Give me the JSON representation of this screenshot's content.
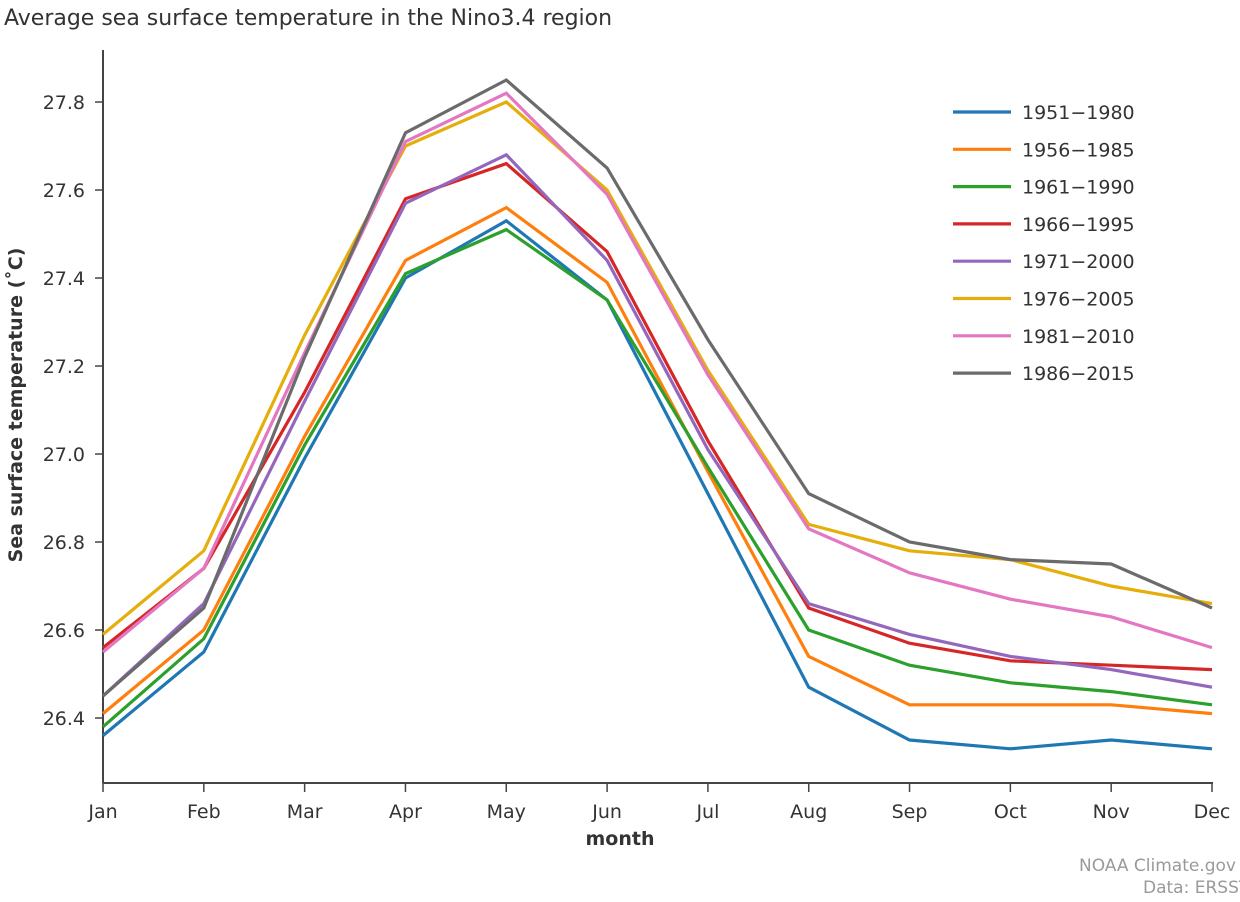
{
  "chart_data": {
    "type": "line",
    "title": "Average sea surface temperature in the Nino3.4 region",
    "xlabel": "month",
    "ylabel": "Sea surface temperature (˚C)",
    "categories": [
      "Jan",
      "Feb",
      "Mar",
      "Apr",
      "May",
      "Jun",
      "Jul",
      "Aug",
      "Sep",
      "Oct",
      "Nov",
      "Dec"
    ],
    "y_ticks": [
      "26.4",
      "26.6",
      "26.8",
      "27.0",
      "27.2",
      "27.4",
      "27.6",
      "27.8"
    ],
    "ylim": [
      26.24,
      27.9
    ],
    "grid": false,
    "legend_position": "top-right",
    "series": [
      {
        "name": "1951−1980",
        "color": "#1f77b4",
        "values": [
          26.36,
          26.55,
          26.99,
          27.4,
          27.53,
          27.35,
          26.91,
          26.47,
          26.35,
          26.33,
          26.35,
          26.33
        ]
      },
      {
        "name": "1956−1985",
        "color": "#ff7f0e",
        "values": [
          26.41,
          26.6,
          27.04,
          27.44,
          27.56,
          27.39,
          26.96,
          26.54,
          26.43,
          26.43,
          26.43,
          26.41
        ]
      },
      {
        "name": "1961−1990",
        "color": "#2ca02c",
        "values": [
          26.38,
          26.58,
          27.02,
          27.41,
          27.51,
          27.35,
          26.97,
          26.6,
          26.52,
          26.48,
          26.46,
          26.43
        ]
      },
      {
        "name": "1966−1995",
        "color": "#d62728",
        "values": [
          26.56,
          26.74,
          27.14,
          27.58,
          27.66,
          27.46,
          27.03,
          26.65,
          26.57,
          26.53,
          26.52,
          26.51
        ]
      },
      {
        "name": "1971−2000",
        "color": "#9467bd",
        "values": [
          26.45,
          26.66,
          27.12,
          27.57,
          27.68,
          27.44,
          27.01,
          26.66,
          26.59,
          26.54,
          26.51,
          26.47
        ]
      },
      {
        "name": "1976−2005",
        "color": "#e5ae0b",
        "values": [
          26.59,
          26.78,
          27.27,
          27.7,
          27.8,
          27.6,
          27.19,
          26.84,
          26.78,
          26.76,
          26.7,
          26.66
        ]
      },
      {
        "name": "1981−2010",
        "color": "#e377c2",
        "values": [
          26.55,
          26.74,
          27.23,
          27.71,
          27.82,
          27.59,
          27.18,
          26.83,
          26.73,
          26.67,
          26.63,
          26.56
        ]
      },
      {
        "name": "1986−2015",
        "color": "#6b6b6b",
        "values": [
          26.45,
          26.65,
          27.22,
          27.73,
          27.85,
          27.65,
          27.26,
          26.91,
          26.8,
          26.76,
          26.75,
          26.65
        ]
      }
    ]
  },
  "credits": {
    "line1": "NOAA Climate.gov",
    "line2": "Data: ERSST.v5"
  }
}
